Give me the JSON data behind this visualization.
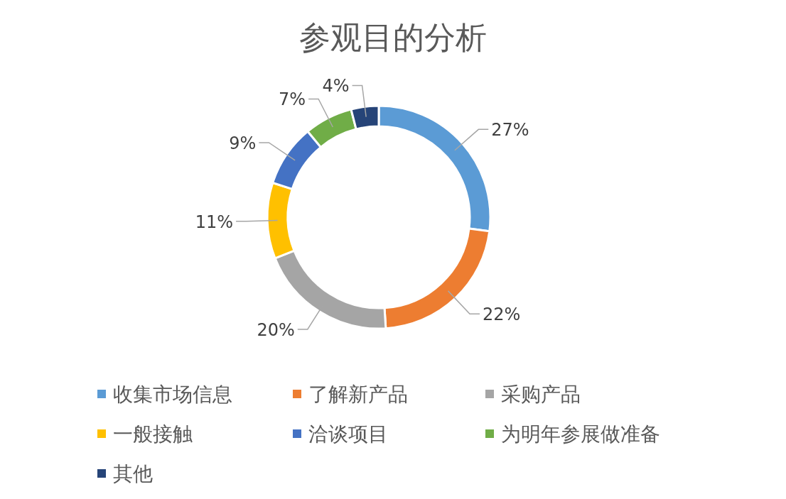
{
  "chart_data": {
    "type": "donut",
    "title": "参观目的分析",
    "categories": [
      "收集市场信息",
      "了解新产品",
      "采购产品",
      "一般接触",
      "洽谈项目",
      "为明年参展做准备",
      "其他"
    ],
    "values": [
      27,
      22,
      20,
      11,
      9,
      7,
      4
    ],
    "colors": [
      "#5b9bd5",
      "#ed7d31",
      "#a5a5a5",
      "#ffc000",
      "#4472c4",
      "#70ad47",
      "#264478"
    ],
    "value_labels": [
      "27%",
      "22%",
      "20%",
      "11%",
      "9%",
      "7%",
      "4%"
    ],
    "legend": "bottom"
  }
}
